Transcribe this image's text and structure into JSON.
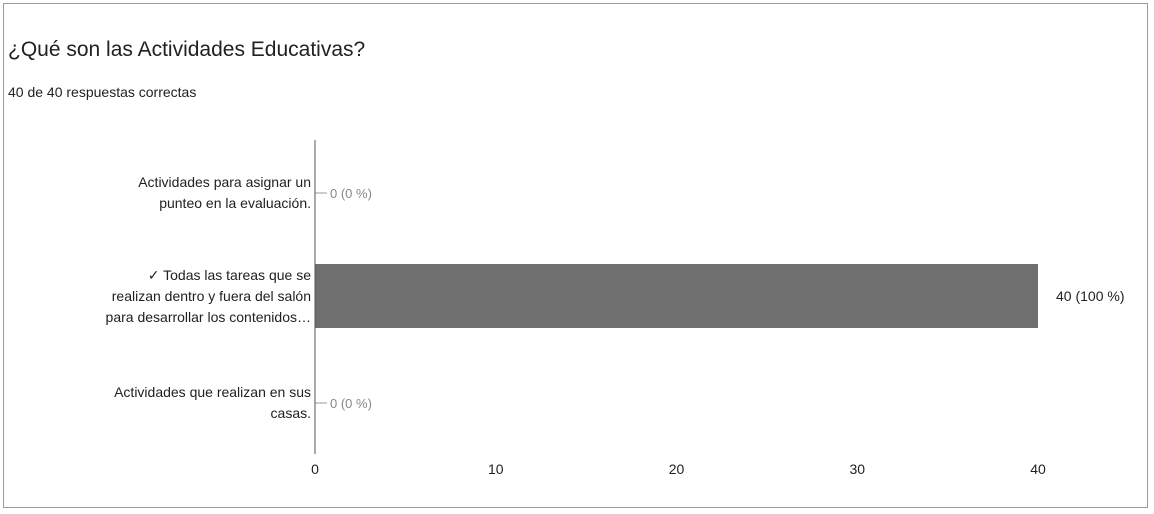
{
  "question": {
    "title": "¿Qué son las Actividades Educativas?",
    "summary": "40 de 40 respuestas correctas"
  },
  "colors": {
    "bar": "#6f6f6f",
    "axis": "#555555",
    "text": "#202124",
    "value_text": "#888888"
  },
  "chart_data": {
    "type": "bar",
    "orientation": "horizontal",
    "categories": [
      "Actividades para asignar un punteo en la evaluación.",
      "✓ Todas las tareas que se realizan dentro y fuera del salón para desarrollar los contenidos…",
      "Actividades que realizan en sus casas."
    ],
    "category_lines": [
      [
        "Actividades para asignar un",
        "punteo en la evaluación."
      ],
      [
        "✓ Todas las tareas que se",
        "realizan dentro y fuera del salón",
        "para desarrollar los contenidos…"
      ],
      [
        "Actividades que realizan en sus",
        "casas."
      ]
    ],
    "values": [
      0,
      40,
      0
    ],
    "value_labels": [
      "0 (0 %)",
      "40 (100 %)",
      "0 (0 %)"
    ],
    "xlim": [
      0,
      40
    ],
    "xticks": [
      0,
      10,
      20,
      30,
      40
    ],
    "xlabel": "",
    "ylabel": "",
    "grid": false
  }
}
